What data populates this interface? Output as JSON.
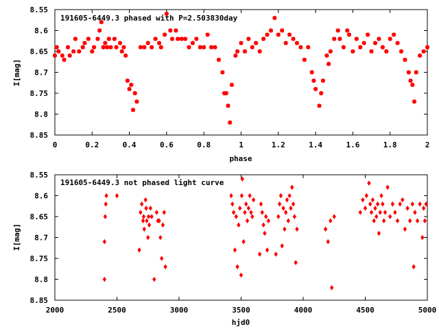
{
  "chart_data": [
    {
      "type": "scatter",
      "title": "191605-6449.3 phased with P=2.503830day",
      "xlabel": "phase",
      "ylabel": "I[mag]",
      "xlim": [
        0,
        2
      ],
      "ylim": [
        8.85,
        8.55
      ],
      "y_inverted": true,
      "xticks": [
        0,
        0.2,
        0.4,
        0.6,
        0.8,
        1,
        1.2,
        1.4,
        1.6,
        1.8,
        2
      ],
      "xtick_labels": [
        "0",
        "0.2",
        "0.4",
        "0.6",
        "0.8",
        "1",
        "1.2",
        "1.4",
        "1.6",
        "1.8",
        "2"
      ],
      "yticks": [
        8.55,
        8.6,
        8.65,
        8.7,
        8.75,
        8.8,
        8.85
      ],
      "ytick_labels": [
        "8.55",
        "8.6",
        "8.65",
        "8.7",
        "8.75",
        "8.8",
        "8.85"
      ],
      "grid": false,
      "marker_color": "#ff0000",
      "points": [
        [
          0.0,
          8.66
        ],
        [
          0.01,
          8.64
        ],
        [
          0.02,
          8.65
        ],
        [
          0.04,
          8.66
        ],
        [
          0.05,
          8.67
        ],
        [
          0.07,
          8.64
        ],
        [
          0.08,
          8.66
        ],
        [
          0.1,
          8.65
        ],
        [
          0.11,
          8.62
        ],
        [
          0.13,
          8.65
        ],
        [
          0.15,
          8.64
        ],
        [
          0.16,
          8.63
        ],
        [
          0.18,
          8.62
        ],
        [
          0.2,
          8.65
        ],
        [
          0.21,
          8.64
        ],
        [
          0.23,
          8.62
        ],
        [
          0.24,
          8.6
        ],
        [
          0.25,
          8.58
        ],
        [
          0.26,
          8.64
        ],
        [
          0.27,
          8.63
        ],
        [
          0.28,
          8.64
        ],
        [
          0.29,
          8.62
        ],
        [
          0.3,
          8.64
        ],
        [
          0.32,
          8.62
        ],
        [
          0.33,
          8.64
        ],
        [
          0.35,
          8.63
        ],
        [
          0.36,
          8.65
        ],
        [
          0.37,
          8.64
        ],
        [
          0.38,
          8.66
        ],
        [
          0.39,
          8.72
        ],
        [
          0.4,
          8.74
        ],
        [
          0.41,
          8.73
        ],
        [
          0.42,
          8.79
        ],
        [
          0.43,
          8.75
        ],
        [
          0.44,
          8.77
        ],
        [
          0.46,
          8.64
        ],
        [
          0.48,
          8.64
        ],
        [
          0.5,
          8.63
        ],
        [
          0.52,
          8.64
        ],
        [
          0.54,
          8.62
        ],
        [
          0.56,
          8.63
        ],
        [
          0.57,
          8.64
        ],
        [
          0.59,
          8.61
        ],
        [
          0.6,
          8.56
        ],
        [
          0.62,
          8.6
        ],
        [
          0.63,
          8.62
        ],
        [
          0.65,
          8.6
        ],
        [
          0.66,
          8.62
        ],
        [
          0.68,
          8.62
        ],
        [
          0.7,
          8.62
        ],
        [
          0.72,
          8.64
        ],
        [
          0.74,
          8.63
        ],
        [
          0.76,
          8.62
        ],
        [
          0.78,
          8.64
        ],
        [
          0.8,
          8.64
        ],
        [
          0.82,
          8.61
        ],
        [
          0.84,
          8.64
        ],
        [
          0.86,
          8.64
        ],
        [
          0.88,
          8.67
        ],
        [
          0.9,
          8.7
        ],
        [
          0.91,
          8.75
        ],
        [
          0.92,
          8.75
        ],
        [
          0.93,
          8.78
        ],
        [
          0.94,
          8.82
        ],
        [
          0.95,
          8.73
        ],
        [
          0.97,
          8.66
        ],
        [
          0.98,
          8.65
        ],
        [
          1.0,
          8.63
        ],
        [
          1.02,
          8.65
        ],
        [
          1.04,
          8.62
        ],
        [
          1.06,
          8.64
        ],
        [
          1.08,
          8.63
        ],
        [
          1.1,
          8.65
        ],
        [
          1.12,
          8.62
        ],
        [
          1.14,
          8.61
        ],
        [
          1.16,
          8.6
        ],
        [
          1.18,
          8.57
        ],
        [
          1.2,
          8.61
        ],
        [
          1.22,
          8.6
        ],
        [
          1.24,
          8.63
        ],
        [
          1.26,
          8.61
        ],
        [
          1.28,
          8.62
        ],
        [
          1.3,
          8.63
        ],
        [
          1.32,
          8.64
        ],
        [
          1.34,
          8.67
        ],
        [
          1.36,
          8.64
        ],
        [
          1.38,
          8.7
        ],
        [
          1.39,
          8.72
        ],
        [
          1.4,
          8.74
        ],
        [
          1.42,
          8.78
        ],
        [
          1.43,
          8.75
        ],
        [
          1.44,
          8.72
        ],
        [
          1.46,
          8.66
        ],
        [
          1.47,
          8.68
        ],
        [
          1.48,
          8.65
        ],
        [
          1.5,
          8.62
        ],
        [
          1.52,
          8.6
        ],
        [
          1.53,
          8.62
        ],
        [
          1.55,
          8.64
        ],
        [
          1.57,
          8.6
        ],
        [
          1.58,
          8.61
        ],
        [
          1.6,
          8.65
        ],
        [
          1.62,
          8.62
        ],
        [
          1.64,
          8.64
        ],
        [
          1.66,
          8.63
        ],
        [
          1.68,
          8.61
        ],
        [
          1.7,
          8.65
        ],
        [
          1.72,
          8.63
        ],
        [
          1.74,
          8.62
        ],
        [
          1.76,
          8.64
        ],
        [
          1.78,
          8.65
        ],
        [
          1.8,
          8.62
        ],
        [
          1.82,
          8.61
        ],
        [
          1.84,
          8.63
        ],
        [
          1.86,
          8.65
        ],
        [
          1.88,
          8.67
        ],
        [
          1.9,
          8.7
        ],
        [
          1.91,
          8.72
        ],
        [
          1.92,
          8.73
        ],
        [
          1.93,
          8.77
        ],
        [
          1.94,
          8.7
        ],
        [
          1.96,
          8.66
        ],
        [
          1.98,
          8.65
        ],
        [
          2.0,
          8.64
        ]
      ]
    },
    {
      "type": "scatter",
      "title": "191605-6449.3 not phased light curve",
      "xlabel": "hjd0",
      "ylabel": "I[mag]",
      "xlim": [
        2000,
        5000
      ],
      "ylim": [
        8.85,
        8.55
      ],
      "y_inverted": true,
      "xticks": [
        2000,
        2500,
        3000,
        3500,
        4000,
        4500,
        5000
      ],
      "xtick_labels": [
        "2000",
        "2500",
        "3000",
        "3500",
        "4000",
        "4500",
        "5000"
      ],
      "yticks": [
        8.55,
        8.6,
        8.65,
        8.7,
        8.75,
        8.8,
        8.85
      ],
      "ytick_labels": [
        "8.55",
        "8.6",
        "8.65",
        "8.7",
        "8.75",
        "8.8",
        "8.85"
      ],
      "grid": false,
      "marker_color": "#ff0000",
      "points": [
        [
          2400,
          8.8
        ],
        [
          2400,
          8.71
        ],
        [
          2405,
          8.65
        ],
        [
          2410,
          8.62
        ],
        [
          2415,
          8.6
        ],
        [
          2500,
          8.6
        ],
        [
          2680,
          8.73
        ],
        [
          2690,
          8.64
        ],
        [
          2700,
          8.62
        ],
        [
          2710,
          8.66
        ],
        [
          2715,
          8.65
        ],
        [
          2720,
          8.68
        ],
        [
          2730,
          8.61
        ],
        [
          2735,
          8.63
        ],
        [
          2740,
          8.66
        ],
        [
          2750,
          8.7
        ],
        [
          2755,
          8.65
        ],
        [
          2760,
          8.67
        ],
        [
          2770,
          8.63
        ],
        [
          2780,
          8.65
        ],
        [
          2800,
          8.8
        ],
        [
          2820,
          8.64
        ],
        [
          2830,
          8.66
        ],
        [
          2840,
          8.66
        ],
        [
          2850,
          8.7
        ],
        [
          2860,
          8.75
        ],
        [
          2870,
          8.67
        ],
        [
          2880,
          8.64
        ],
        [
          2890,
          8.77
        ],
        [
          3420,
          8.6
        ],
        [
          3430,
          8.62
        ],
        [
          3440,
          8.64
        ],
        [
          3450,
          8.73
        ],
        [
          3460,
          8.65
        ],
        [
          3470,
          8.77
        ],
        [
          3480,
          8.67
        ],
        [
          3490,
          8.63
        ],
        [
          3500,
          8.79
        ],
        [
          3505,
          8.6
        ],
        [
          3510,
          8.56
        ],
        [
          3520,
          8.71
        ],
        [
          3530,
          8.64
        ],
        [
          3540,
          8.62
        ],
        [
          3550,
          8.66
        ],
        [
          3560,
          8.63
        ],
        [
          3570,
          8.6
        ],
        [
          3580,
          8.64
        ],
        [
          3590,
          8.65
        ],
        [
          3600,
          8.61
        ],
        [
          3650,
          8.74
        ],
        [
          3660,
          8.62
        ],
        [
          3670,
          8.64
        ],
        [
          3680,
          8.67
        ],
        [
          3690,
          8.69
        ],
        [
          3700,
          8.65
        ],
        [
          3710,
          8.73
        ],
        [
          3720,
          8.66
        ],
        [
          3780,
          8.74
        ],
        [
          3800,
          8.65
        ],
        [
          3810,
          8.62
        ],
        [
          3820,
          8.6
        ],
        [
          3830,
          8.72
        ],
        [
          3840,
          8.63
        ],
        [
          3850,
          8.68
        ],
        [
          3860,
          8.64
        ],
        [
          3870,
          8.61
        ],
        [
          3880,
          8.66
        ],
        [
          3890,
          8.6
        ],
        [
          3900,
          8.63
        ],
        [
          3910,
          8.58
        ],
        [
          3920,
          8.62
        ],
        [
          3930,
          8.65
        ],
        [
          3940,
          8.76
        ],
        [
          3950,
          8.68
        ],
        [
          4180,
          8.68
        ],
        [
          4200,
          8.71
        ],
        [
          4220,
          8.66
        ],
        [
          4230,
          8.82
        ],
        [
          4250,
          8.65
        ],
        [
          4460,
          8.64
        ],
        [
          4480,
          8.61
        ],
        [
          4500,
          8.63
        ],
        [
          4510,
          8.6
        ],
        [
          4530,
          8.57
        ],
        [
          4540,
          8.62
        ],
        [
          4550,
          8.64
        ],
        [
          4560,
          8.61
        ],
        [
          4570,
          8.66
        ],
        [
          4580,
          8.63
        ],
        [
          4590,
          8.65
        ],
        [
          4600,
          8.62
        ],
        [
          4610,
          8.69
        ],
        [
          4620,
          8.64
        ],
        [
          4630,
          8.6
        ],
        [
          4640,
          8.62
        ],
        [
          4650,
          8.66
        ],
        [
          4660,
          8.64
        ],
        [
          4680,
          8.58
        ],
        [
          4700,
          8.65
        ],
        [
          4720,
          8.62
        ],
        [
          4740,
          8.64
        ],
        [
          4760,
          8.66
        ],
        [
          4780,
          8.62
        ],
        [
          4800,
          8.61
        ],
        [
          4820,
          8.68
        ],
        [
          4840,
          8.63
        ],
        [
          4860,
          8.66
        ],
        [
          4880,
          8.62
        ],
        [
          4890,
          8.77
        ],
        [
          4900,
          8.64
        ],
        [
          4920,
          8.66
        ],
        [
          4940,
          8.62
        ],
        [
          4960,
          8.7
        ],
        [
          4970,
          8.63
        ],
        [
          4980,
          8.66
        ],
        [
          4990,
          8.62
        ]
      ]
    }
  ]
}
